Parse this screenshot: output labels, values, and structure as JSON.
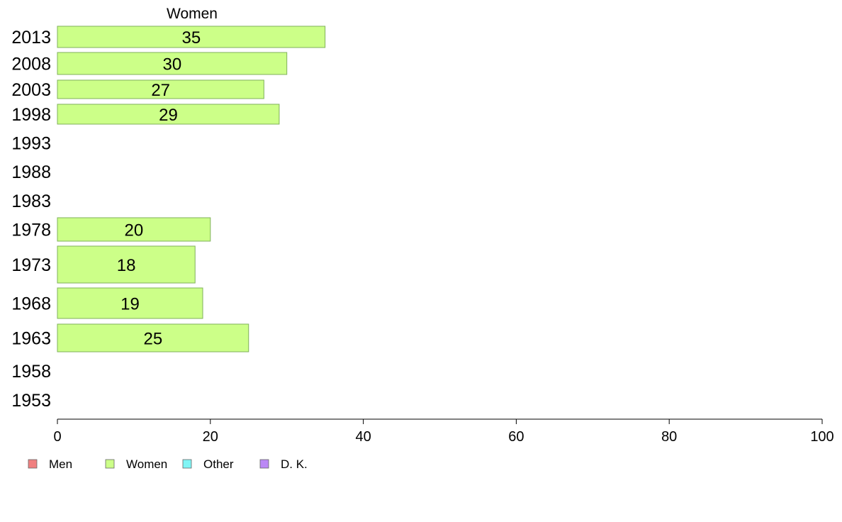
{
  "chart_data": {
    "type": "bar",
    "orientation": "horizontal",
    "title": "Women",
    "categories": [
      "2013",
      "2008",
      "2003",
      "1998",
      "1993",
      "1988",
      "1983",
      "1978",
      "1973",
      "1968",
      "1963",
      "1958",
      "1953"
    ],
    "series": [
      {
        "name": "Women",
        "color": "#ccff88",
        "values": [
          35,
          30,
          27,
          29,
          null,
          null,
          null,
          20,
          18,
          19,
          25,
          null,
          null
        ],
        "labels": [
          "35",
          "30",
          "27",
          "29",
          "",
          "",
          "",
          "20",
          "18",
          "19",
          "25",
          "",
          ""
        ]
      }
    ],
    "xlim": [
      0,
      100
    ],
    "xticks": [
      0,
      20,
      40,
      60,
      80,
      100
    ],
    "legend": {
      "position": "bottom-left",
      "items": [
        {
          "label": "Men",
          "color": "#f08080"
        },
        {
          "label": "Women",
          "color": "#ccff88"
        },
        {
          "label": "Other",
          "color": "#80f5f5"
        },
        {
          "label": "D. K.",
          "color": "#bb88f5"
        }
      ]
    },
    "grid": false
  }
}
